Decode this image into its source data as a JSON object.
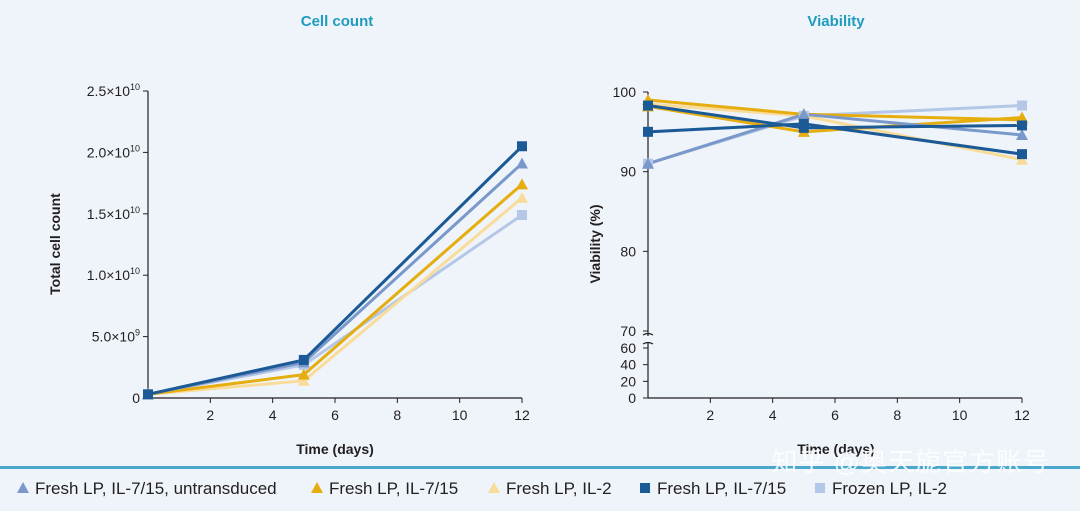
{
  "chart_data": [
    {
      "type": "line",
      "title": "Cell count",
      "xlabel": "Time (days)",
      "ylabel": "Total cell count",
      "xlim": [
        0,
        12
      ],
      "ylim": [
        0,
        25000000000
      ],
      "x_ticks": [
        "2",
        "4",
        "6",
        "8",
        "10",
        "12"
      ],
      "y_ticks": [
        {
          "value": 0,
          "base": "0",
          "exp": ""
        },
        {
          "value": 5000000000,
          "base": "5.0×10",
          "exp": "9"
        },
        {
          "value": 10000000000,
          "base": "1.0×10",
          "exp": "10"
        },
        {
          "value": 15000000000,
          "base": "1.5×10",
          "exp": "10"
        },
        {
          "value": 20000000000,
          "base": "2.0×10",
          "exp": "10"
        },
        {
          "value": 25000000000,
          "base": "2.5×10",
          "exp": "10"
        }
      ],
      "series": [
        {
          "name": "Frozen LP, IL-2",
          "color": "#b4c7e7",
          "marker": "square",
          "x": [
            0,
            5,
            12
          ],
          "y": [
            300000000,
            2700000000,
            14900000000
          ]
        },
        {
          "name": "Fresh LP, IL-2",
          "color": "#f9dc9a",
          "marker": "triangle",
          "x": [
            0,
            5,
            12
          ],
          "y": [
            300000000,
            1400000000,
            16300000000
          ]
        },
        {
          "name": "Fresh LP, IL-7/15",
          "color": "#e5ad0d",
          "marker": "triangle",
          "x": [
            0,
            5,
            12
          ],
          "y": [
            300000000,
            1900000000,
            17400000000
          ]
        },
        {
          "name": "Fresh LP, IL-7/15, untransduced",
          "color": "#7a98c9",
          "marker": "triangle",
          "x": [
            0,
            5,
            12
          ],
          "y": [
            300000000,
            2900000000,
            19100000000
          ]
        },
        {
          "name": "Fresh LP, IL-7/15",
          "color": "#1b5a96",
          "marker": "square",
          "x": [
            0,
            5,
            12
          ],
          "y": [
            300000000,
            3100000000,
            20500000000
          ]
        }
      ]
    },
    {
      "type": "line",
      "title": "Viability",
      "xlabel": "Time (days)",
      "ylabel": "Viability (%)",
      "xlim": [
        0,
        12
      ],
      "ylim": [
        0,
        100
      ],
      "axis_break": "60–70",
      "x_ticks": [
        "2",
        "4",
        "6",
        "8",
        "10",
        "12"
      ],
      "y_ticks": [
        "0",
        "20",
        "40",
        "60",
        "70",
        "80",
        "90",
        "100"
      ],
      "series": [
        {
          "name": "Frozen LP, IL-2",
          "color": "#b4c7e7",
          "marker": "square",
          "x": [
            0,
            5,
            12
          ],
          "y": [
            91,
            97,
            98.3
          ]
        },
        {
          "name": "Fresh LP, IL-2",
          "color": "#f9dc9a",
          "marker": "triangle",
          "x": [
            0,
            5,
            12
          ],
          "y": [
            98.5,
            97,
            91.5
          ]
        },
        {
          "name": "Fresh LP, IL-7/15",
          "color": "#e5ad0d",
          "marker": "triangle",
          "x": [
            0,
            5,
            12
          ],
          "y": [
            98.2,
            95,
            96.8
          ]
        },
        {
          "name": "Fresh LP, IL-7/15",
          "color": "#e5ad0d",
          "marker": "triangle",
          "x": [
            0,
            5,
            12
          ],
          "y": [
            99,
            97.2,
            96.5
          ]
        },
        {
          "name": "Fresh LP, IL-7/15, untransduced",
          "color": "#7a98c9",
          "marker": "triangle",
          "x": [
            0,
            5,
            12
          ],
          "y": [
            91,
            97.2,
            94.6
          ]
        },
        {
          "name": "Fresh LP, IL-7/15",
          "color": "#1b5a96",
          "marker": "square",
          "x": [
            0,
            5,
            12
          ],
          "y": [
            95,
            96,
            92.2
          ]
        },
        {
          "name": "Fresh LP, IL-7/15",
          "color": "#1b5a96",
          "marker": "square",
          "x": [
            0,
            5,
            12
          ],
          "y": [
            98.3,
            95.5,
            95.8
          ]
        }
      ]
    }
  ],
  "legend": [
    {
      "label": "Fresh LP, IL-7/15, untransduced",
      "color": "#7a98c9",
      "marker": "triangle"
    },
    {
      "label": "Fresh LP, IL-7/15",
      "color": "#e5ad0d",
      "marker": "triangle"
    },
    {
      "label": "Fresh LP, IL-2",
      "color": "#f9dc9a",
      "marker": "triangle"
    },
    {
      "label": "Fresh LP, IL-7/15",
      "color": "#1b5a96",
      "marker": "square"
    },
    {
      "label": "Frozen LP, IL-2",
      "color": "#b4c7e7",
      "marker": "square"
    }
  ],
  "watermark": "知乎 @奥天旎官方账号",
  "colors": {
    "title": "#1f9bbd",
    "divider": "#4aa8cc",
    "axis": "#231f20"
  }
}
